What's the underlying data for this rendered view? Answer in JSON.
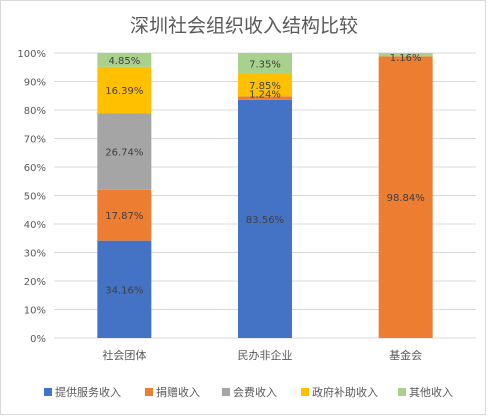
{
  "chart_data": {
    "type": "bar",
    "stacked": true,
    "title": "深圳社会组织收入结构比较",
    "xlabel": "",
    "ylabel": "",
    "ylim": [
      0,
      100
    ],
    "y_ticks": [
      "0%",
      "10%",
      "20%",
      "30%",
      "40%",
      "50%",
      "60%",
      "70%",
      "80%",
      "90%",
      "100%"
    ],
    "categories": [
      "社会团体",
      "民办非企业",
      "基金会"
    ],
    "series": [
      {
        "name": "提供服务收入",
        "color": "#4472c4",
        "values": [
          34.16,
          83.56,
          0
        ],
        "labels": [
          "34.16%",
          "83.56%",
          ""
        ]
      },
      {
        "name": "捐赠收入",
        "color": "#ed7d31",
        "values": [
          17.87,
          1.24,
          98.84
        ],
        "labels": [
          "17.87%",
          "1.24%",
          "98.84%"
        ]
      },
      {
        "name": "会费收入",
        "color": "#a5a5a5",
        "values": [
          26.74,
          0,
          0
        ],
        "labels": [
          "26.74%",
          "",
          ""
        ]
      },
      {
        "name": "政府补助收入",
        "color": "#ffc000",
        "values": [
          16.39,
          7.85,
          0
        ],
        "labels": [
          "16.39%",
          "7.85%",
          ""
        ]
      },
      {
        "name": "其他收入",
        "color": "#a9d18e",
        "values": [
          4.85,
          7.35,
          1.16
        ],
        "labels": [
          "4.85%",
          "7.35%",
          "1.16%"
        ]
      }
    ],
    "grid": true,
    "legend_position": "bottom"
  }
}
